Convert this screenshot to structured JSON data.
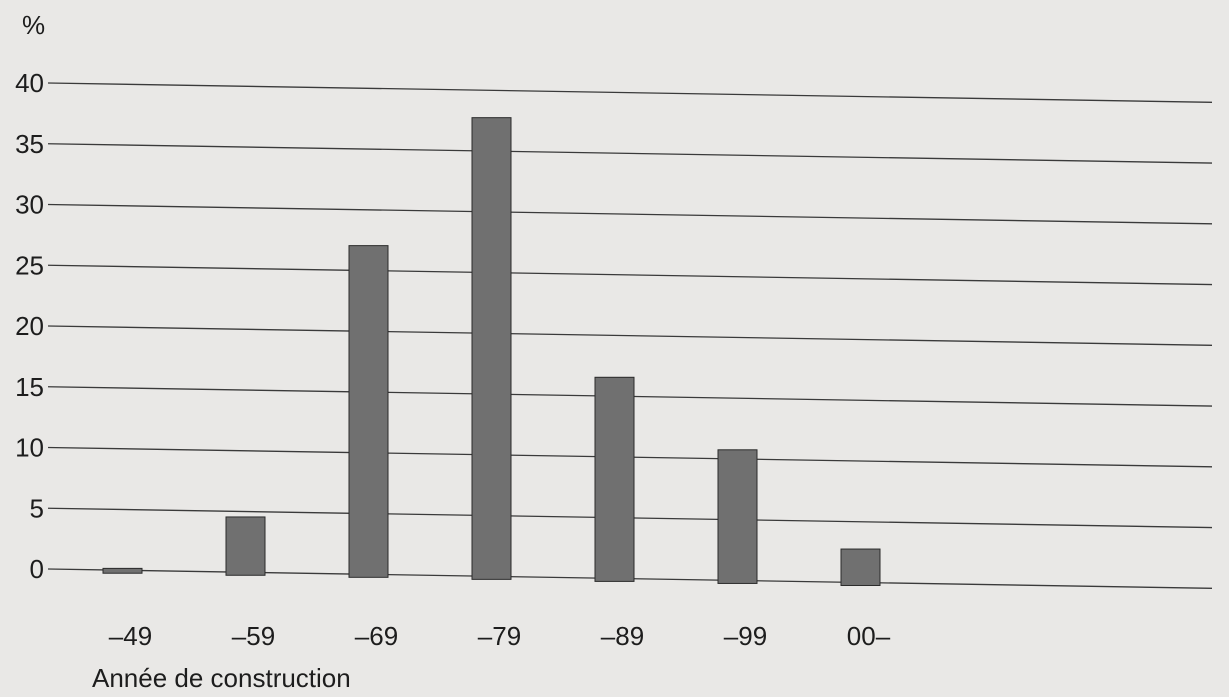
{
  "chart_data": {
    "type": "bar",
    "title": "",
    "ylabel": "%",
    "xlabel": "Année de construction",
    "categories": [
      "–49",
      "–59",
      "–69",
      "–79",
      "–89",
      "–99",
      "00–"
    ],
    "values": [
      0.4,
      4.8,
      27.3,
      38.0,
      16.8,
      11.0,
      3.0
    ],
    "ylim": [
      0,
      40
    ],
    "yticks": [
      0,
      5,
      10,
      15,
      20,
      25,
      30,
      35,
      40
    ],
    "grid": true,
    "legend": "none",
    "colors": {
      "bar": "#707070",
      "bar_stroke": "#2a2a2a",
      "grid": "#3a3a3a",
      "text": "#1d1d1d",
      "background": "#e9e8e6"
    }
  }
}
